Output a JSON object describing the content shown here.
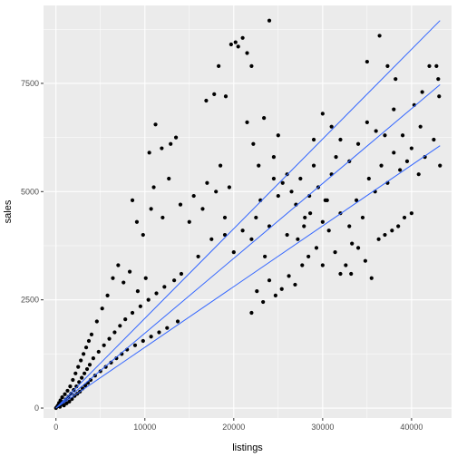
{
  "chart_data": {
    "type": "scatter",
    "title": "",
    "xlabel": "listings",
    "ylabel": "sales",
    "xlim": [
      -1400,
      44500
    ],
    "ylim": [
      -230,
      9300
    ],
    "x_ticks": [
      0,
      10000,
      20000,
      30000,
      40000
    ],
    "x_tick_labels": [
      "0",
      "10000",
      "20000",
      "30000",
      "40000"
    ],
    "y_ticks": [
      0,
      2500,
      5000,
      7500
    ],
    "y_tick_labels": [
      "0",
      "2500",
      "5000",
      "7500"
    ],
    "grid": true,
    "panel_background": "#ebebeb",
    "grid_color": "#ffffff",
    "point_color": "#000000",
    "points": [
      [
        0,
        0
      ],
      [
        150,
        40
      ],
      [
        250,
        70
      ],
      [
        350,
        120
      ],
      [
        450,
        30
      ],
      [
        500,
        180
      ],
      [
        600,
        90
      ],
      [
        700,
        250
      ],
      [
        800,
        140
      ],
      [
        900,
        60
      ],
      [
        1000,
        320
      ],
      [
        1100,
        200
      ],
      [
        1200,
        110
      ],
      [
        1300,
        400
      ],
      [
        1400,
        260
      ],
      [
        1500,
        150
      ],
      [
        1600,
        500
      ],
      [
        1700,
        330
      ],
      [
        1800,
        210
      ],
      [
        1900,
        650
      ],
      [
        2000,
        420
      ],
      [
        2100,
        280
      ],
      [
        2200,
        800
      ],
      [
        2300,
        500
      ],
      [
        2400,
        330
      ],
      [
        2500,
        950
      ],
      [
        2600,
        600
      ],
      [
        2700,
        380
      ],
      [
        2800,
        1100
      ],
      [
        2900,
        700
      ],
      [
        3000,
        450
      ],
      [
        3100,
        1250
      ],
      [
        3200,
        800
      ],
      [
        3300,
        520
      ],
      [
        3400,
        1400
      ],
      [
        3500,
        900
      ],
      [
        3600,
        580
      ],
      [
        3700,
        1550
      ],
      [
        3800,
        1000
      ],
      [
        3900,
        650
      ],
      [
        4000,
        1700
      ],
      [
        4200,
        1150
      ],
      [
        4400,
        750
      ],
      [
        4600,
        2000
      ],
      [
        4800,
        1300
      ],
      [
        5000,
        850
      ],
      [
        5200,
        2300
      ],
      [
        5400,
        1450
      ],
      [
        5600,
        950
      ],
      [
        5800,
        2600
      ],
      [
        6000,
        1600
      ],
      [
        6200,
        1050
      ],
      [
        6400,
        3000
      ],
      [
        6600,
        1750
      ],
      [
        6800,
        1150
      ],
      [
        7000,
        3300
      ],
      [
        7200,
        1900
      ],
      [
        7400,
        1250
      ],
      [
        7600,
        2900
      ],
      [
        7800,
        2050
      ],
      [
        8000,
        1350
      ],
      [
        8300,
        3150
      ],
      [
        8600,
        2200
      ],
      [
        8900,
        1450
      ],
      [
        9200,
        2700
      ],
      [
        9500,
        2350
      ],
      [
        9800,
        1550
      ],
      [
        10100,
        3000
      ],
      [
        10400,
        2500
      ],
      [
        10700,
        1650
      ],
      [
        11000,
        5100
      ],
      [
        11300,
        2650
      ],
      [
        11600,
        1750
      ],
      [
        11900,
        6000
      ],
      [
        12200,
        2800
      ],
      [
        12500,
        1850
      ],
      [
        12900,
        6100
      ],
      [
        13300,
        2950
      ],
      [
        13700,
        2000
      ],
      [
        14100,
        3100
      ],
      [
        10500,
        5900
      ],
      [
        11200,
        6550
      ],
      [
        12000,
        4400
      ],
      [
        12700,
        5300
      ],
      [
        13500,
        6250
      ],
      [
        14000,
        4700
      ],
      [
        9800,
        4000
      ],
      [
        10700,
        4600
      ],
      [
        9100,
        4300
      ],
      [
        8600,
        4800
      ],
      [
        15000,
        4300
      ],
      [
        15500,
        4900
      ],
      [
        16000,
        3500
      ],
      [
        16500,
        4600
      ],
      [
        17000,
        5200
      ],
      [
        17500,
        3900
      ],
      [
        18000,
        5000
      ],
      [
        18500,
        5600
      ],
      [
        19000,
        4400
      ],
      [
        19500,
        5100
      ],
      [
        16900,
        7100
      ],
      [
        17800,
        7250
      ],
      [
        18300,
        7900
      ],
      [
        19100,
        7200
      ],
      [
        19700,
        8400
      ],
      [
        20200,
        8450
      ],
      [
        20500,
        8350
      ],
      [
        21000,
        8550
      ],
      [
        21500,
        8200
      ],
      [
        22000,
        7900
      ],
      [
        19000,
        4000
      ],
      [
        20000,
        3600
      ],
      [
        21000,
        4100
      ],
      [
        22000,
        3900
      ],
      [
        22500,
        4400
      ],
      [
        23000,
        4800
      ],
      [
        23500,
        3500
      ],
      [
        24000,
        4200
      ],
      [
        24500,
        5300
      ],
      [
        25000,
        4900
      ],
      [
        21500,
        6600
      ],
      [
        22200,
        6100
      ],
      [
        22800,
        5600
      ],
      [
        23400,
        6700
      ],
      [
        24000,
        8950
      ],
      [
        24500,
        5800
      ],
      [
        25000,
        6300
      ],
      [
        25500,
        5200
      ],
      [
        26000,
        5400
      ],
      [
        26500,
        5000
      ],
      [
        22000,
        2200
      ],
      [
        22600,
        2700
      ],
      [
        23300,
        2450
      ],
      [
        24000,
        2950
      ],
      [
        24700,
        2600
      ],
      [
        25400,
        2750
      ],
      [
        26200,
        3050
      ],
      [
        26900,
        2850
      ],
      [
        27700,
        3300
      ],
      [
        28400,
        3500
      ],
      [
        27000,
        4700
      ],
      [
        27500,
        5300
      ],
      [
        28000,
        4400
      ],
      [
        28500,
        4900
      ],
      [
        29000,
        5600
      ],
      [
        29500,
        5100
      ],
      [
        30000,
        4300
      ],
      [
        30500,
        4800
      ],
      [
        31000,
        5400
      ],
      [
        31500,
        5800
      ],
      [
        27200,
        3900
      ],
      [
        27900,
        4200
      ],
      [
        28600,
        4500
      ],
      [
        29300,
        3700
      ],
      [
        30000,
        3300
      ],
      [
        30700,
        4100
      ],
      [
        31400,
        3600
      ],
      [
        32000,
        3100
      ],
      [
        32600,
        3300
      ],
      [
        33300,
        3800
      ],
      [
        29000,
        6200
      ],
      [
        30000,
        6800
      ],
      [
        31000,
        6500
      ],
      [
        32000,
        6200
      ],
      [
        33000,
        5700
      ],
      [
        34000,
        6100
      ],
      [
        35000,
        6600
      ],
      [
        36000,
        6400
      ],
      [
        37000,
        6300
      ],
      [
        38000,
        6900
      ],
      [
        32000,
        4500
      ],
      [
        33000,
        4200
      ],
      [
        33800,
        4800
      ],
      [
        34500,
        4400
      ],
      [
        35200,
        5300
      ],
      [
        35900,
        5000
      ],
      [
        36600,
        5600
      ],
      [
        37300,
        5200
      ],
      [
        38000,
        5900
      ],
      [
        38700,
        5500
      ],
      [
        33200,
        3100
      ],
      [
        34000,
        3700
      ],
      [
        34800,
        3400
      ],
      [
        35500,
        3000
      ],
      [
        36300,
        3900
      ],
      [
        37000,
        4000
      ],
      [
        37800,
        4100
      ],
      [
        38500,
        4200
      ],
      [
        39200,
        4400
      ],
      [
        40000,
        4500
      ],
      [
        36400,
        8600
      ],
      [
        37300,
        7900
      ],
      [
        38200,
        7600
      ],
      [
        35000,
        8000
      ],
      [
        39000,
        6300
      ],
      [
        40000,
        6000
      ],
      [
        41000,
        6500
      ],
      [
        42000,
        7900
      ],
      [
        43000,
        7600
      ],
      [
        43200,
        5600
      ],
      [
        41500,
        5800
      ],
      [
        42500,
        6200
      ],
      [
        40800,
        5400
      ],
      [
        39500,
        5700
      ],
      [
        40300,
        7000
      ],
      [
        41200,
        7300
      ],
      [
        42800,
        7900
      ],
      [
        43100,
        7200
      ],
      [
        30300,
        4800
      ],
      [
        26000,
        4000
      ]
    ],
    "trend_lines": [
      {
        "x": [
          0,
          43200
        ],
        "y": [
          0,
          8950
        ]
      },
      {
        "x": [
          0,
          43200
        ],
        "y": [
          0,
          7470
        ]
      },
      {
        "x": [
          0,
          43200
        ],
        "y": [
          0,
          6060
        ]
      }
    ],
    "trend_line_color": "#3366ff"
  }
}
